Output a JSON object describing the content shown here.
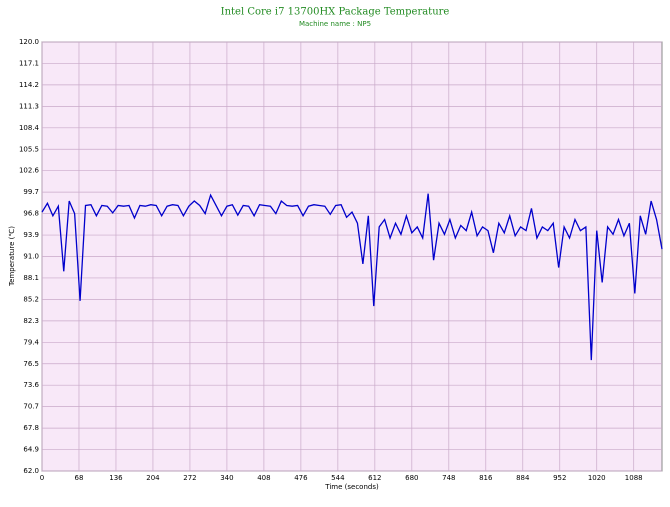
{
  "chart_data": {
    "type": "line",
    "title": "Intel Core i7 13700HX Package Temperature",
    "subtitle": "Machine name : NP5",
    "x_label": "Time (seconds)",
    "y_label": "Temperature (℃)",
    "x": [
      0,
      10,
      20,
      30,
      40,
      50,
      60,
      70,
      80,
      90,
      100,
      110,
      120,
      130,
      140,
      150,
      160,
      170,
      180,
      190,
      200,
      210,
      220,
      230,
      240,
      250,
      260,
      270,
      280,
      290,
      300,
      310,
      320,
      330,
      340,
      350,
      360,
      370,
      380,
      390,
      400,
      410,
      420,
      430,
      440,
      450,
      460,
      470,
      480,
      490,
      500,
      510,
      520,
      530,
      540,
      550,
      560,
      570,
      580,
      590,
      600,
      610,
      620,
      630,
      640,
      650,
      660,
      670,
      680,
      690,
      700,
      710,
      720,
      730,
      740,
      750,
      760,
      770,
      780,
      790,
      800,
      810,
      820,
      830,
      840,
      850,
      860,
      870,
      880,
      890,
      900,
      910,
      920,
      930,
      940,
      950,
      960,
      970,
      980,
      990,
      1000,
      1010,
      1020,
      1030,
      1040,
      1050,
      1060,
      1070,
      1080,
      1090,
      1100,
      1110,
      1120,
      1130,
      1140
    ],
    "series": [
      {
        "name": "Package Temperature",
        "color": "#0000cc",
        "values": [
          97.0,
          98.2,
          96.5,
          97.8,
          89.0,
          98.5,
          96.8,
          85.0,
          97.9,
          98.0,
          96.5,
          97.9,
          97.8,
          96.9,
          97.9,
          97.8,
          97.9,
          96.2,
          97.9,
          97.8,
          98.0,
          97.9,
          96.5,
          97.8,
          98.0,
          97.9,
          96.5,
          97.8,
          98.5,
          97.9,
          96.8,
          99.3,
          97.9,
          96.5,
          97.8,
          98.0,
          96.6,
          97.9,
          97.8,
          96.5,
          98.0,
          97.9,
          97.8,
          96.8,
          98.5,
          97.9,
          97.8,
          97.9,
          96.5,
          97.8,
          98.0,
          97.9,
          97.8,
          96.7,
          97.9,
          98.0,
          96.3,
          97.0,
          95.5,
          90.0,
          96.5,
          84.3,
          95.0,
          96.0,
          93.5,
          95.5,
          94.0,
          96.5,
          94.2,
          95.0,
          93.5,
          99.5,
          90.5,
          95.5,
          94.0,
          96.0,
          93.5,
          95.2,
          94.5,
          97.0,
          93.8,
          95.0,
          94.5,
          91.5,
          95.5,
          94.2,
          96.5,
          93.8,
          95.0,
          94.5,
          97.5,
          93.5,
          95.0,
          94.5,
          95.5,
          89.5,
          95.0,
          93.5,
          96.0,
          94.5,
          95.0,
          77.0,
          94.5,
          87.5,
          95.0,
          94.0,
          96.0,
          93.8,
          95.5,
          86.0,
          96.5,
          94.0,
          98.5,
          96.0,
          92.0
        ]
      }
    ],
    "xlim": [
      0,
      1140
    ],
    "xticks": [
      0,
      68,
      136,
      204,
      272,
      340,
      408,
      476,
      544,
      612,
      680,
      748,
      816,
      884,
      952,
      1020,
      1088
    ],
    "ylim": [
      62,
      120
    ],
    "yticks": [
      {
        "value": 62,
        "label": "62.0"
      },
      64.9,
      67.8,
      70.7,
      73.6,
      76.5,
      79.4,
      82.3,
      85.2,
      88.1,
      {
        "value": 91,
        "label": "91.0"
      },
      93.9,
      96.8,
      99.7,
      102.6,
      105.5,
      108.4,
      111.3,
      114.2,
      117.1,
      {
        "value": 120,
        "label": "120.0"
      }
    ],
    "grid": true
  }
}
